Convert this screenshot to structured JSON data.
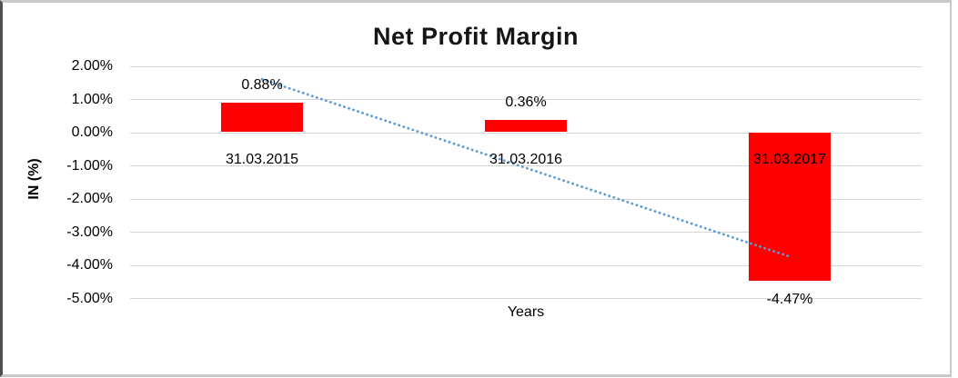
{
  "chart_data": {
    "type": "bar",
    "title": "Net Profit Margin",
    "xlabel": "Years",
    "ylabel": "IN (%)",
    "categories": [
      "31.03.2015",
      "31.03.2016",
      "31.03.2017"
    ],
    "values": [
      0.88,
      0.36,
      -4.47
    ],
    "value_labels": [
      "0.88%",
      "0.36%",
      "-4.47%"
    ],
    "ylim": [
      -5,
      2
    ],
    "yticks": [
      {
        "value": 2,
        "label": "2.00%"
      },
      {
        "value": 1,
        "label": "1.00%"
      },
      {
        "value": 0,
        "label": "0.00%"
      },
      {
        "value": -1,
        "label": "-1.00%"
      },
      {
        "value": -2,
        "label": "-2.00%"
      },
      {
        "value": -3,
        "label": "-3.00%"
      },
      {
        "value": -4,
        "label": "-4.00%"
      },
      {
        "value": -5,
        "label": "-5.00%"
      }
    ],
    "grid": true,
    "legend": "none",
    "bar_color": "#ff0000",
    "text_color": "#000000",
    "gridline_color": "#d6d6d6",
    "frame_border_color": "#c9c9c9",
    "trendline": {
      "type": "linear",
      "style": "dotted",
      "color": "#5b9bd5",
      "start_value": 1.6,
      "end_value": -3.75
    }
  }
}
